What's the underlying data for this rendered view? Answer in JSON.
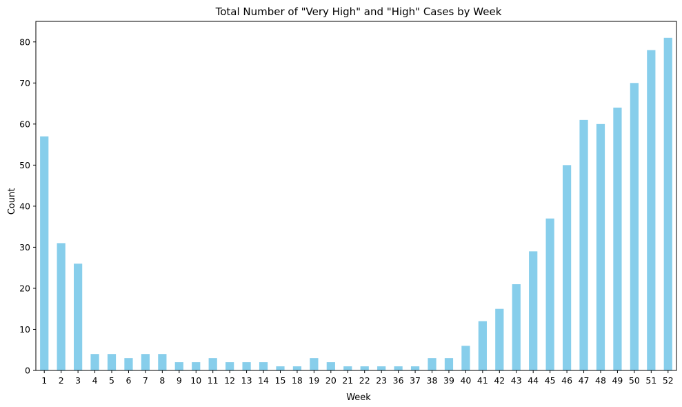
{
  "chart_data": {
    "type": "bar",
    "title": "Total Number of \"Very High\" and \"High\" Cases by Week",
    "xlabel": "Week",
    "ylabel": "Count",
    "categories": [
      "1",
      "2",
      "3",
      "4",
      "5",
      "6",
      "7",
      "8",
      "9",
      "10",
      "11",
      "12",
      "13",
      "14",
      "15",
      "18",
      "19",
      "20",
      "21",
      "22",
      "23",
      "36",
      "37",
      "38",
      "39",
      "40",
      "41",
      "42",
      "43",
      "44",
      "45",
      "46",
      "47",
      "48",
      "49",
      "50",
      "51",
      "52"
    ],
    "values": [
      57,
      31,
      26,
      4,
      4,
      3,
      4,
      4,
      2,
      2,
      3,
      2,
      2,
      2,
      1,
      1,
      3,
      2,
      1,
      1,
      1,
      1,
      1,
      3,
      3,
      6,
      12,
      15,
      21,
      29,
      37,
      50,
      61,
      60,
      64,
      70,
      78,
      81
    ],
    "ylim": [
      0,
      85
    ],
    "yticks": [
      0,
      10,
      20,
      30,
      40,
      50,
      60,
      70,
      80
    ],
    "bar_color": "#87ceeb",
    "grid": false,
    "legend": "none"
  }
}
